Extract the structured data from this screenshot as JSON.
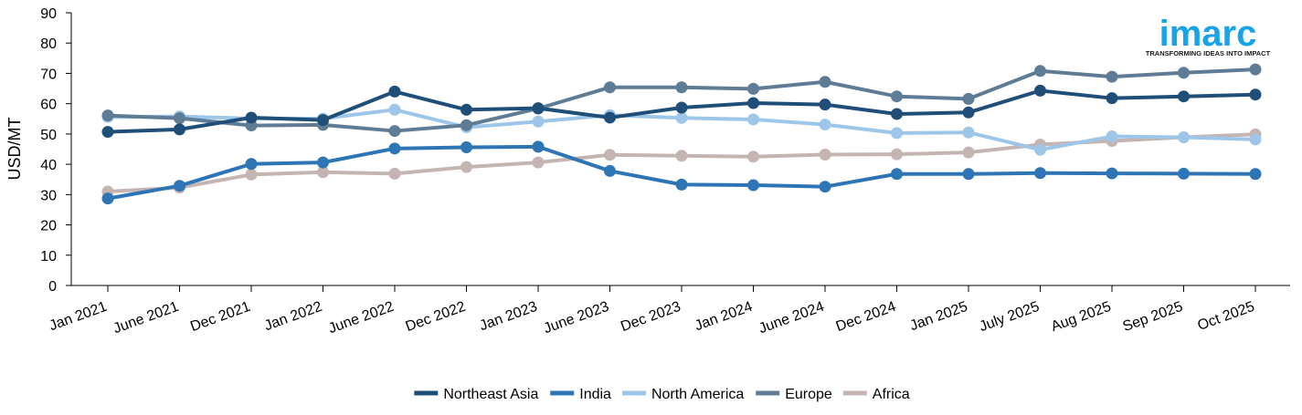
{
  "logo": {
    "name": "imarc",
    "tagline": "TRANSFORMING IDEAS INTO IMPACT",
    "color": "#1aa3e8"
  },
  "chart_data": {
    "type": "line",
    "title": "",
    "xlabel": "",
    "ylabel": "USD/MT",
    "ylim": [
      0,
      90
    ],
    "yticks": [
      0,
      10,
      20,
      30,
      40,
      50,
      60,
      70,
      80,
      90
    ],
    "grid": false,
    "legend_position": "bottom-center",
    "categories": [
      "Jan 2021",
      "June 2021",
      "Dec 2021",
      "Jan 2022",
      "June 2022",
      "Dec 2022",
      "Jan 2023",
      "June 2023",
      "Dec 2023",
      "Jan 2024",
      "June 2024",
      "Dec 2024",
      "Jan 2025",
      "July 2025",
      "Aug 2025",
      "Sep 2025",
      "Oct 2025"
    ],
    "series": [
      {
        "name": "Africa",
        "color": "#c4b5b2",
        "values": [
          31,
          32.3,
          36.6,
          37.4,
          36.9,
          39.1,
          40.6,
          43.1,
          42.8,
          42.5,
          43.2,
          43.3,
          43.9,
          46.5,
          47.7,
          48.9,
          49.9
        ]
      },
      {
        "name": "North America",
        "color": "#9ec6e8",
        "values": [
          55.6,
          55.8,
          55.1,
          55.1,
          58,
          52.2,
          54.1,
          56.2,
          55.3,
          54.8,
          53.1,
          50.3,
          50.5,
          44.8,
          49.2,
          48.9,
          48.2
        ]
      },
      {
        "name": "Europe",
        "color": "#5e7c96",
        "values": [
          56.1,
          55.2,
          52.8,
          53,
          51,
          52.9,
          58.4,
          65.4,
          65.4,
          64.9,
          67.2,
          62.4,
          61.6,
          70.8,
          68.9,
          70.2,
          71.3
        ]
      },
      {
        "name": "India",
        "color": "#2e75b6",
        "values": [
          28.7,
          32.9,
          40.1,
          40.6,
          45.2,
          45.6,
          45.8,
          37.8,
          33.3,
          33.1,
          32.6,
          36.8,
          36.8,
          37.1,
          37,
          36.9,
          36.8
        ]
      },
      {
        "name": "Northeast Asia",
        "color": "#1f4e79",
        "values": [
          50.7,
          51.5,
          55.4,
          54.6,
          64,
          58,
          58.5,
          55.4,
          58.7,
          60.2,
          59.7,
          56.6,
          57.1,
          64.3,
          61.8,
          62.4,
          63
        ]
      }
    ],
    "legend_order": [
      "Northeast Asia",
      "India",
      "North America",
      "Europe",
      "Africa"
    ]
  }
}
